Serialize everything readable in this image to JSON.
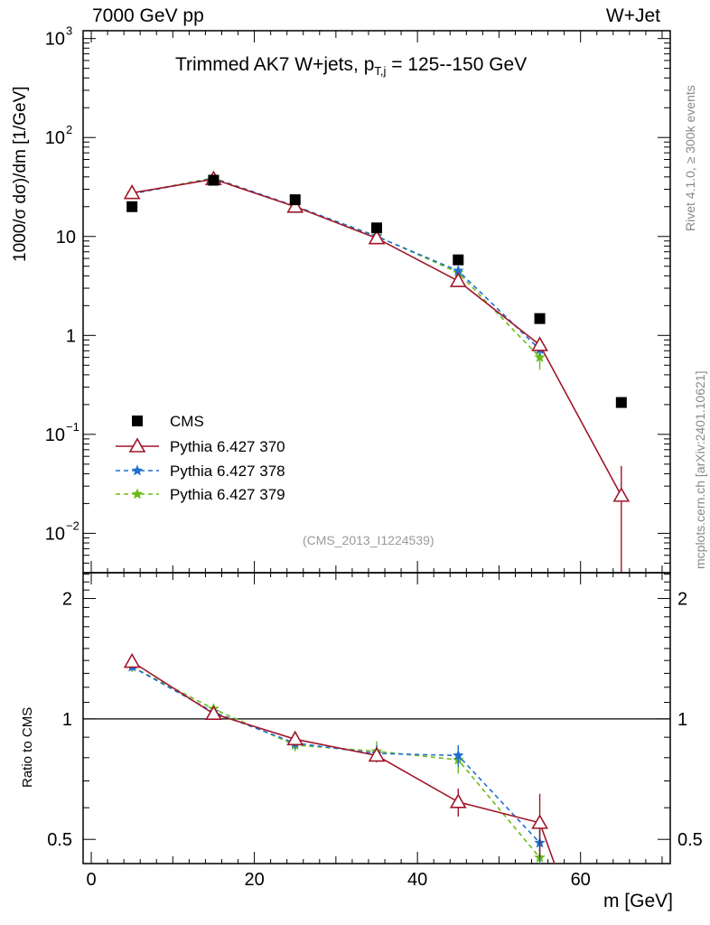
{
  "header": {
    "left": "7000 GeV pp",
    "right": "W+Jet"
  },
  "side": {
    "top": "Rivet 4.1.0, ≥ 300k events",
    "bottom": "mcplots.cern.ch [arXiv:2401.10621]"
  },
  "watermark": "(CMS_2013_I1224539)",
  "chart_data": [
    {
      "type": "scatter",
      "title_prefix": "Trimmed AK7 W+jets, p",
      "title_sub": "T,j",
      "title_suffix": " = 125--150 GeV",
      "ylabel": "1000/σ   dσ)/dm [1/GeV]",
      "yscale": "log",
      "ylim": [
        0.004,
        1200
      ],
      "xlim": [
        -1,
        71
      ],
      "yticks": [
        {
          "v": 0.01,
          "base": "10",
          "exp": "−2"
        },
        {
          "v": 0.1,
          "base": "10",
          "exp": "−1"
        },
        {
          "v": 1,
          "base": "1",
          "exp": ""
        },
        {
          "v": 10,
          "base": "10",
          "exp": ""
        },
        {
          "v": 100,
          "base": "10",
          "exp": "2"
        },
        {
          "v": 1000,
          "base": "10",
          "exp": "3"
        }
      ],
      "series": [
        {
          "name": "CMS",
          "color": "#000000",
          "marker": "square",
          "line": "none",
          "x": [
            5,
            15,
            25,
            35,
            45,
            55,
            65
          ],
          "y": [
            20,
            37,
            23.5,
            12.2,
            5.8,
            1.48,
            0.21
          ]
        },
        {
          "name": "Pythia 6.427 370",
          "color": "#a0172a",
          "marker": "triangle",
          "line": "solid",
          "x": [
            5,
            15,
            25,
            35,
            45,
            55,
            65
          ],
          "y": [
            27.5,
            38,
            20,
            9.6,
            3.55,
            0.8,
            0.024
          ],
          "err": [
            0.6,
            0.8,
            0.5,
            0.3,
            0.3,
            0.1,
            0.024
          ]
        },
        {
          "name": "Pythia 6.427 378",
          "color": "#1f6fd1",
          "marker": "star",
          "line": "dashed",
          "x": [
            5,
            15,
            25,
            35,
            45,
            55
          ],
          "y": [
            27,
            38.5,
            20.3,
            10,
            4.5,
            0.72
          ],
          "err": [
            0.6,
            0.8,
            0.5,
            0.3,
            0.3,
            0.1
          ]
        },
        {
          "name": "Pythia 6.427 379",
          "color": "#6dbb1a",
          "marker": "star",
          "line": "dashed",
          "x": [
            5,
            15,
            25,
            35,
            45,
            55
          ],
          "y": [
            27.2,
            39,
            20.1,
            10.1,
            4.3,
            0.6
          ],
          "err": [
            0.6,
            0.8,
            0.5,
            0.3,
            0.3,
            0.15
          ]
        }
      ]
    },
    {
      "type": "line",
      "ylabel": "Ratio to CMS",
      "xlabel": "m [GeV]",
      "yscale": "log",
      "ylim": [
        0.435,
        2.32
      ],
      "xlim": [
        -1,
        71
      ],
      "yticks": [
        0.5,
        1,
        2
      ],
      "xticks": [
        0,
        20,
        40,
        60
      ],
      "reference": 1,
      "series": [
        {
          "name": "Pythia 6.427 370",
          "color": "#a0172a",
          "marker": "triangle",
          "line": "solid",
          "x": [
            5,
            15,
            25,
            35,
            45,
            55,
            56.8
          ],
          "y": [
            1.39,
            1.03,
            0.89,
            0.81,
            0.62,
            0.55,
            0.435
          ],
          "err": [
            0.03,
            0.03,
            0.03,
            0.03,
            0.05,
            0.1,
            0
          ]
        },
        {
          "name": "Pythia 6.427 378",
          "color": "#1f6fd1",
          "marker": "star",
          "line": "dashed",
          "x": [
            5,
            15,
            25,
            35,
            45,
            55
          ],
          "y": [
            1.35,
            1.04,
            0.87,
            0.82,
            0.81,
            0.49
          ],
          "err": [
            0.03,
            0.03,
            0.03,
            0.04,
            0.05,
            0.08
          ]
        },
        {
          "name": "Pythia 6.427 379",
          "color": "#6dbb1a",
          "marker": "star",
          "line": "dashed",
          "x": [
            5,
            15,
            25,
            35,
            45,
            55
          ],
          "y": [
            1.35,
            1.06,
            0.86,
            0.83,
            0.79,
            0.45
          ],
          "err": [
            0.04,
            0.03,
            0.03,
            0.05,
            0.06,
            0.08
          ]
        }
      ]
    }
  ]
}
